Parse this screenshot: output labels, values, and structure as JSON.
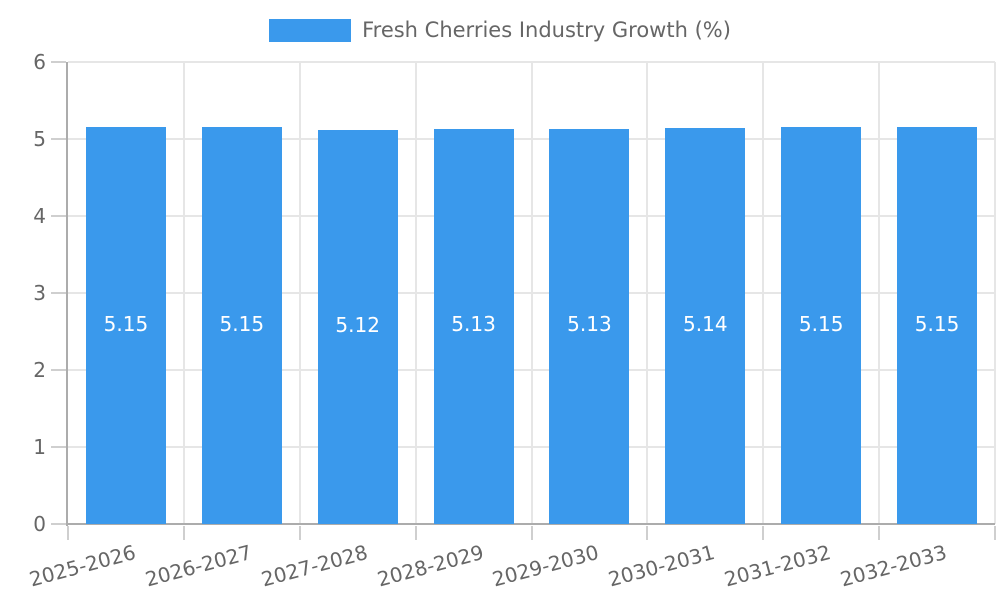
{
  "chart_data": {
    "type": "bar",
    "title": "Fresh Cherries Industry Growth (%)",
    "categories": [
      "2025-2026",
      "2026-2027",
      "2027-2028",
      "2028-2029",
      "2029-2030",
      "2030-2031",
      "2031-2032",
      "2032-2033"
    ],
    "values": [
      5.15,
      5.15,
      5.12,
      5.13,
      5.13,
      5.14,
      5.15,
      5.15
    ],
    "bar_labels": [
      "5.15",
      "5.15",
      "5.12",
      "5.13",
      "5.13",
      "5.14",
      "5.15",
      "5.15"
    ],
    "xlabel": "",
    "ylabel": "",
    "ylim": [
      0,
      6
    ],
    "yticks": [
      "0",
      "1",
      "2",
      "3",
      "4",
      "5",
      "6"
    ],
    "legend": {
      "position": "top",
      "label": "Fresh Cherries Industry Growth (%)"
    },
    "grid": true
  },
  "colors": {
    "bar": "#3A99EC",
    "bar_label_text": "#FFFFFF",
    "grid": "#E6E6E6",
    "axis": "#ACACAC",
    "tick": "#CFCFCF",
    "text": "#666666"
  }
}
